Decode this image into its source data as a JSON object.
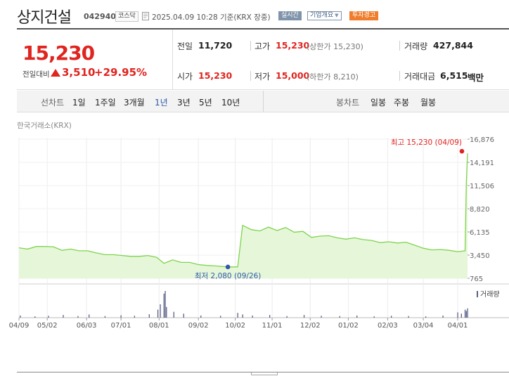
{
  "header": {
    "name": "상지건설",
    "code": "042940",
    "market": "코스닥",
    "as_of": "2025.04.09 10:28 기준(KRX 장중)",
    "realtime_label": "실시간",
    "company_label": "기업개요",
    "warning_label": "투자경고"
  },
  "price": {
    "current": "15,230",
    "change_label": "전일대비",
    "change_abs": "3,510",
    "change_pct": "+29.95%"
  },
  "stats": {
    "prev_label": "전일",
    "prev_value": "11,720",
    "high_label": "고가",
    "high_value": "15,230",
    "high_sub": "(상한가 15,230)",
    "volume_label": "거래량",
    "volume_value": "427,844",
    "open_label": "시가",
    "open_value": "15,230",
    "low_label": "저가",
    "low_value": "15,000",
    "low_sub": "(하한가 8,210)",
    "amount_label": "거래대금",
    "amount_value": "6,515",
    "amount_unit": "백만"
  },
  "period_bar": {
    "line_chart_label": "선차트",
    "line_periods": [
      "1일",
      "1주일",
      "3개월",
      "1년",
      "3년",
      "5년",
      "10년"
    ],
    "active_period": "1년",
    "candle_chart_label": "봉차트",
    "candle_periods": [
      "일봉",
      "주봉",
      "월봉"
    ]
  },
  "source_label": "한국거래소(KRX)",
  "colors": {
    "up": "#e0241f",
    "line": "#7ed34d",
    "fill": "#e6f7d9",
    "accent": "#2f59a8",
    "volume": "#5b5f87",
    "warning": "#ef7d2d"
  },
  "chart_data": [
    {
      "type": "area",
      "title": "",
      "xlabel": "",
      "ylabel": "",
      "x_ticks": [
        "04/09",
        "05/02",
        "06/03",
        "07/01",
        "08/01",
        "09/02",
        "10/02",
        "11/01",
        "12/02",
        "01/02",
        "02/03",
        "03/04",
        "04/01"
      ],
      "y_ticks": [
        765,
        3450,
        6135,
        8820,
        11506,
        14191,
        16876
      ],
      "y_tick_labels": [
        "765",
        "3,450",
        "6,135",
        "8,820",
        "11,506",
        "14,191",
        "16,876"
      ],
      "ylim": [
        765,
        16876
      ],
      "grid": true,
      "series": [
        {
          "x": [
            "2024-04-09",
            "2024-04-16",
            "2024-04-23",
            "2024-04-30",
            "2024-05-07",
            "2024-05-14",
            "2024-05-21",
            "2024-05-28",
            "2024-06-04",
            "2024-06-11",
            "2024-06-18",
            "2024-06-25",
            "2024-07-02",
            "2024-07-09",
            "2024-07-16",
            "2024-07-23",
            "2024-07-30",
            "2024-08-05",
            "2024-08-12",
            "2024-08-19",
            "2024-08-26",
            "2024-09-02",
            "2024-09-09",
            "2024-09-16",
            "2024-09-26",
            "2024-10-02",
            "2024-10-04",
            "2024-10-08",
            "2024-10-15",
            "2024-10-22",
            "2024-10-29",
            "2024-11-05",
            "2024-11-12",
            "2024-11-19",
            "2024-11-26",
            "2024-12-03",
            "2024-12-10",
            "2024-12-17",
            "2024-12-24",
            "2024-12-31",
            "2025-01-07",
            "2025-01-14",
            "2025-01-21",
            "2025-01-28",
            "2025-02-04",
            "2025-02-11",
            "2025-02-18",
            "2025-02-25",
            "2025-03-04",
            "2025-03-11",
            "2025-03-18",
            "2025-03-25",
            "2025-04-01",
            "2025-04-07",
            "2025-04-08",
            "2025-04-09"
          ],
          "y": [
            4300,
            4150,
            4450,
            4450,
            4420,
            4000,
            4150,
            3950,
            3950,
            3700,
            3500,
            3500,
            3400,
            3300,
            3300,
            3400,
            3200,
            2500,
            2900,
            2600,
            2600,
            2350,
            2250,
            2200,
            2080,
            2080,
            2080,
            6900,
            6400,
            6250,
            6700,
            6300,
            6650,
            6100,
            6200,
            5500,
            5650,
            5700,
            5450,
            5300,
            5450,
            5250,
            5150,
            4900,
            5000,
            4850,
            4950,
            4600,
            4250,
            4050,
            4100,
            4000,
            3850,
            3950,
            11720,
            15230
          ]
        }
      ],
      "annotations": [
        {
          "text": "최고 15,230 (04/09)",
          "x": "2025-04-09",
          "y": 15230
        },
        {
          "text": "최저 2,080 (09/26)",
          "x": "2024-09-26",
          "y": 2080
        }
      ]
    },
    {
      "type": "bar",
      "title": "",
      "legend": "거래량",
      "x": [
        "2024-04-10",
        "2024-04-22",
        "2024-05-03",
        "2024-05-15",
        "2024-05-27",
        "2024-06-05",
        "2024-06-18",
        "2024-07-01",
        "2024-07-12",
        "2024-07-24",
        "2024-07-31",
        "2024-08-02",
        "2024-08-05",
        "2024-08-06",
        "2024-08-07",
        "2024-08-13",
        "2024-08-21",
        "2024-09-04",
        "2024-09-20",
        "2024-10-04",
        "2024-10-08",
        "2024-10-16",
        "2024-10-30",
        "2024-11-13",
        "2024-11-27",
        "2024-12-11",
        "2024-12-26",
        "2025-01-09",
        "2025-01-23",
        "2025-02-06",
        "2025-02-20",
        "2025-03-06",
        "2025-03-20",
        "2025-04-01",
        "2025-04-04",
        "2025-04-07",
        "2025-04-08",
        "2025-04-09"
      ],
      "values": [
        0.08,
        0.05,
        0.07,
        0.1,
        0.06,
        0.12,
        0.06,
        0.09,
        0.07,
        0.13,
        0.3,
        0.5,
        0.9,
        1.0,
        0.4,
        0.22,
        0.15,
        0.08,
        0.07,
        0.18,
        0.12,
        0.08,
        0.1,
        0.06,
        0.1,
        0.07,
        0.06,
        0.08,
        0.05,
        0.07,
        0.06,
        0.05,
        0.08,
        0.2,
        0.15,
        0.3,
        0.25,
        0.35
      ],
      "ylim": [
        0,
        1
      ]
    }
  ]
}
